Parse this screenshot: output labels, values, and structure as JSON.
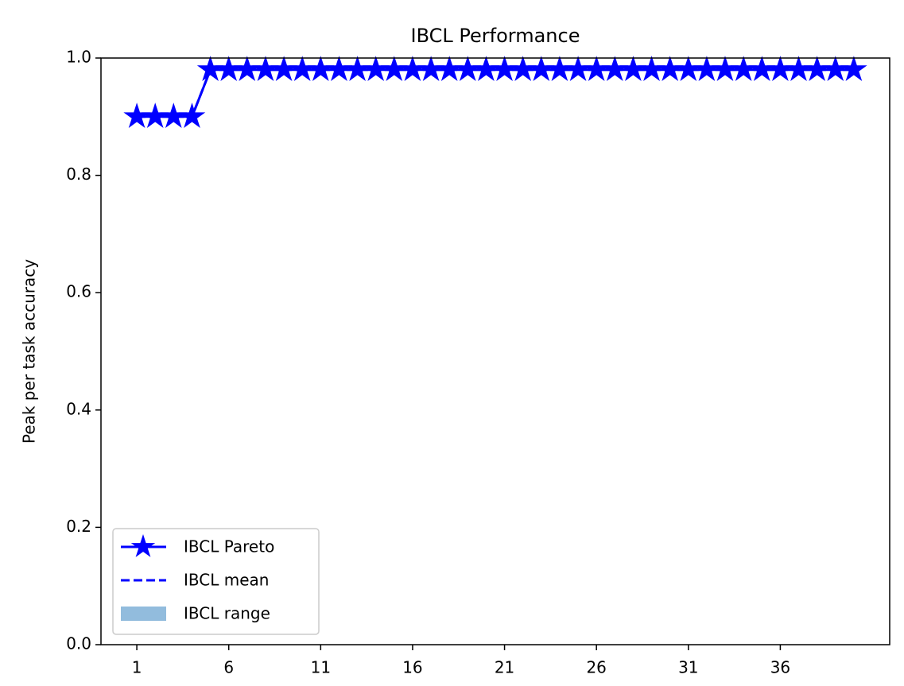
{
  "chart_data": {
    "type": "line",
    "title": "IBCL Performance",
    "y_label": "Peak per task accuracy",
    "x": [
      1,
      2,
      3,
      4,
      5,
      6,
      7,
      8,
      9,
      10,
      11,
      12,
      13,
      14,
      15,
      16,
      17,
      18,
      19,
      20,
      21,
      22,
      23,
      24,
      25,
      26,
      27,
      28,
      29,
      30,
      31,
      32,
      33,
      34,
      35,
      36,
      37,
      38,
      39,
      40
    ],
    "series": [
      {
        "name": "IBCL Pareto",
        "color": "#0000ff",
        "style": "solid",
        "marker": "star",
        "values": [
          0.9,
          0.9,
          0.9,
          0.9,
          0.98,
          0.98,
          0.98,
          0.98,
          0.98,
          0.98,
          0.98,
          0.98,
          0.98,
          0.98,
          0.98,
          0.98,
          0.98,
          0.98,
          0.98,
          0.98,
          0.98,
          0.98,
          0.98,
          0.98,
          0.98,
          0.98,
          0.98,
          0.98,
          0.98,
          0.98,
          0.98,
          0.98,
          0.98,
          0.98,
          0.98,
          0.98,
          0.98,
          0.98,
          0.98,
          0.98
        ]
      },
      {
        "name": "IBCL mean",
        "color": "#0000ff",
        "style": "dashed",
        "values": [
          0.9,
          0.9,
          0.9,
          0.9,
          0.98,
          0.98,
          0.98,
          0.98,
          0.98,
          0.98,
          0.98,
          0.98,
          0.98,
          0.98,
          0.98,
          0.98,
          0.98,
          0.98,
          0.98,
          0.98,
          0.98,
          0.98,
          0.98,
          0.98,
          0.98,
          0.98,
          0.98,
          0.98,
          0.98,
          0.98,
          0.98,
          0.98,
          0.98,
          0.98,
          0.98,
          0.98,
          0.98,
          0.98,
          0.98,
          0.98
        ]
      },
      {
        "name": "IBCL range",
        "color": "#92bcdd",
        "style": "fill",
        "values": [
          0.9,
          0.9,
          0.9,
          0.9,
          0.98,
          0.98,
          0.98,
          0.98,
          0.98,
          0.98,
          0.98,
          0.98,
          0.98,
          0.98,
          0.98,
          0.98,
          0.98,
          0.98,
          0.98,
          0.98,
          0.98,
          0.98,
          0.98,
          0.98,
          0.98,
          0.98,
          0.98,
          0.98,
          0.98,
          0.98,
          0.98,
          0.98,
          0.98,
          0.98,
          0.98,
          0.98,
          0.98,
          0.98,
          0.98,
          0.98
        ]
      }
    ],
    "xlim": [
      -0.95,
      41.95
    ],
    "xticks": [
      1,
      6,
      11,
      16,
      21,
      26,
      31,
      36
    ],
    "ylim": [
      0,
      1
    ],
    "yticks": [
      {
        "value": 0,
        "label": "0.0"
      },
      {
        "value": 0.2,
        "label": "0.2"
      },
      {
        "value": 0.4,
        "label": "0.4"
      },
      {
        "value": 0.6,
        "label": "0.6"
      },
      {
        "value": 0.8,
        "label": "0.8"
      },
      {
        "value": 1,
        "label": "1.0"
      }
    ],
    "legend": "lower left"
  }
}
